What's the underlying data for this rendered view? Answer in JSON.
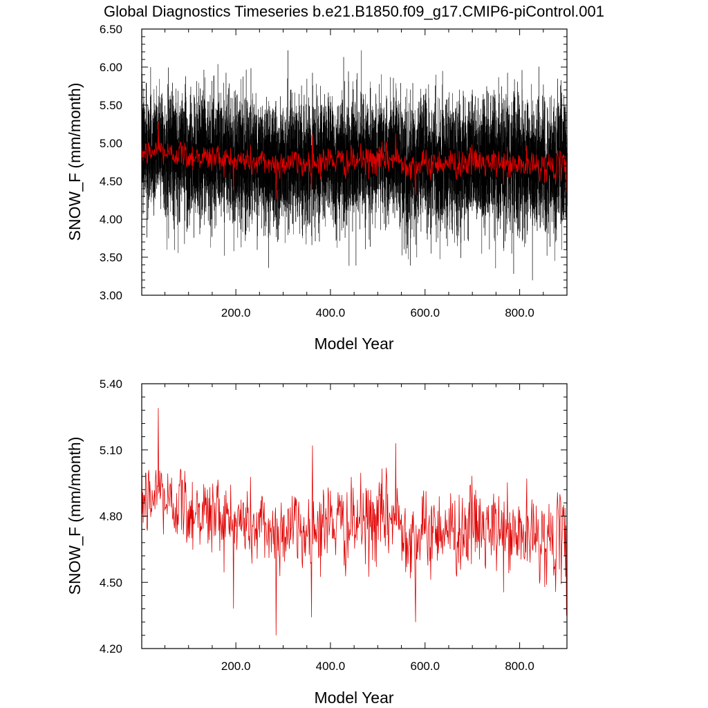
{
  "figure": {
    "title": "Global Diagnostics Timeseries b.e21.B1850.f09_g17.CMIP6-piControl.001"
  },
  "chart_data": [
    {
      "type": "line",
      "description_panel": "top",
      "xlabel": "Model Year",
      "ylabel": "SNOW_F (mm/month)",
      "xlim": [
        1,
        900
      ],
      "ylim": [
        3.0,
        6.5
      ],
      "x_ticks": [
        200.0,
        400.0,
        600.0,
        800.0
      ],
      "x_tick_labels": [
        "200.0",
        "400.0",
        "600.0",
        "800.0"
      ],
      "y_ticks": [
        3.0,
        3.5,
        4.0,
        4.5,
        5.0,
        5.5,
        6.0,
        6.5
      ],
      "y_tick_labels": [
        "3.00",
        "3.50",
        "4.00",
        "4.50",
        "5.00",
        "5.50",
        "6.00",
        "6.50"
      ],
      "grid": false,
      "series": [
        {
          "color": "#000000",
          "resolution": "monthly",
          "mean": 4.75,
          "range_min": 3.1,
          "range_max": 6.22
        },
        {
          "color": "#e00000",
          "resolution": "annual",
          "mean": 4.75
        }
      ]
    },
    {
      "type": "line",
      "description_panel": "bottom",
      "xlabel": "Model Year",
      "ylabel": "SNOW_F (mm/month)",
      "xlim": [
        1,
        900
      ],
      "ylim": [
        4.2,
        5.4
      ],
      "x_ticks": [
        200.0,
        400.0,
        600.0,
        800.0
      ],
      "x_tick_labels": [
        "200.0",
        "400.0",
        "600.0",
        "800.0"
      ],
      "y_ticks": [
        4.2,
        4.5,
        4.8,
        5.1,
        5.4
      ],
      "y_tick_labels": [
        "4.20",
        "4.50",
        "4.80",
        "5.10",
        "5.40"
      ],
      "grid": false,
      "series": [
        {
          "color": "#e00000",
          "resolution": "annual",
          "x": [
            1,
            20,
            40,
            60,
            80,
            100,
            120,
            140,
            160,
            180,
            200,
            220,
            240,
            260,
            280,
            300,
            320,
            340,
            360,
            380,
            400,
            420,
            440,
            460,
            480,
            500,
            520,
            540,
            560,
            580,
            600,
            620,
            640,
            660,
            680,
            700,
            720,
            740,
            760,
            780,
            800,
            820,
            840,
            860,
            880,
            900
          ],
          "y": [
            4.88,
            4.86,
            4.92,
            4.84,
            4.88,
            4.82,
            4.84,
            4.8,
            4.82,
            4.78,
            4.76,
            4.78,
            4.74,
            4.76,
            4.72,
            4.74,
            4.76,
            4.72,
            4.74,
            4.76,
            4.78,
            4.76,
            4.74,
            4.78,
            4.76,
            4.78,
            4.8,
            4.78,
            4.74,
            4.7,
            4.72,
            4.74,
            4.76,
            4.72,
            4.74,
            4.76,
            4.74,
            4.72,
            4.74,
            4.7,
            4.72,
            4.7,
            4.72,
            4.68,
            4.7,
            4.68
          ],
          "extremes": [
            {
              "x": 36,
              "y": 5.29
            },
            {
              "x": 285,
              "y": 4.26
            },
            {
              "x": 362,
              "y": 5.12
            },
            {
              "x": 538,
              "y": 5.13
            },
            {
              "x": 580,
              "y": 4.32
            },
            {
              "x": 899,
              "y": 4.35
            }
          ]
        }
      ]
    }
  ]
}
